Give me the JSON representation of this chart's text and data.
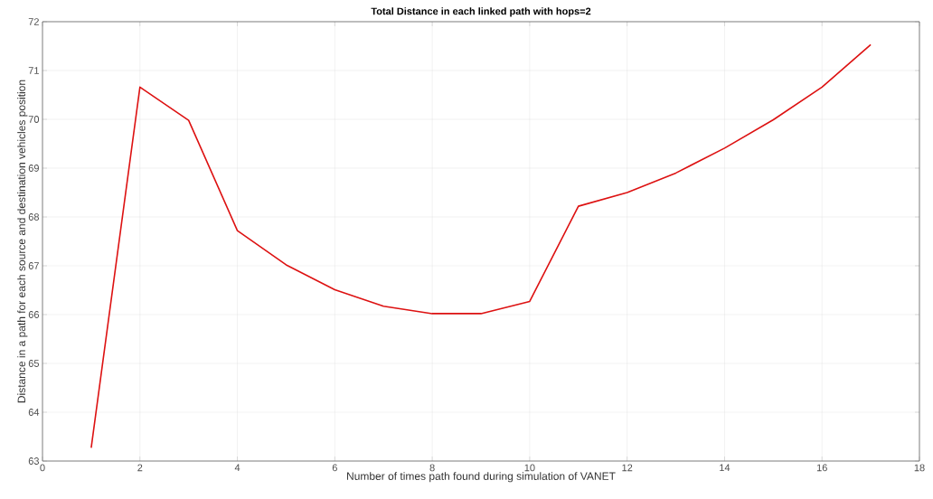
{
  "chart_data": {
    "type": "line",
    "title": "Total Distance in each linked path with hops=2",
    "xlabel": "Number of times path found during simulation of VANET",
    "ylabel": "Distance in a path for each source and destination vehicles position",
    "x": [
      1,
      2,
      3,
      4,
      5,
      6,
      7,
      8,
      9,
      10,
      11,
      12,
      13,
      14,
      15,
      16,
      17
    ],
    "series": [
      {
        "color": "#dd1111",
        "values": [
          63.27,
          70.66,
          69.98,
          67.72,
          67.02,
          66.51,
          66.17,
          66.02,
          66.02,
          66.27,
          68.22,
          68.5,
          68.9,
          69.41,
          69.99,
          70.66,
          71.53
        ]
      }
    ],
    "xlim": [
      0,
      18
    ],
    "xticks": [
      0,
      2,
      4,
      6,
      8,
      10,
      12,
      14,
      16,
      18
    ],
    "ylim": [
      63,
      72
    ],
    "yticks": [
      63,
      64,
      65,
      66,
      67,
      68,
      69,
      70,
      71,
      72
    ],
    "grid": true,
    "line_style": "solid",
    "marker": "none"
  }
}
